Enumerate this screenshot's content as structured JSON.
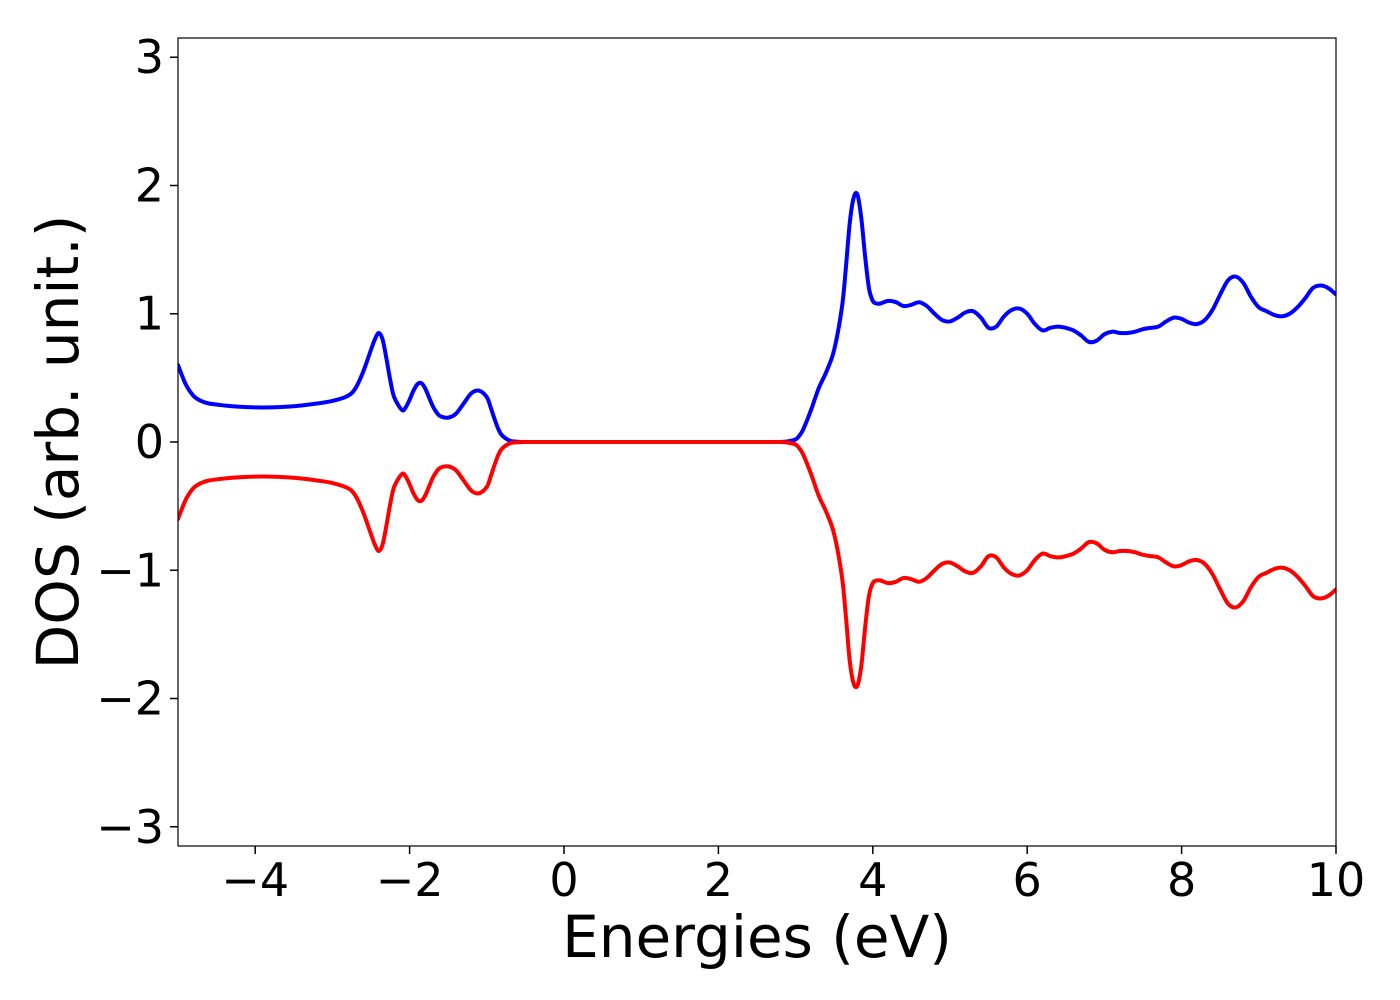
{
  "chart_data": {
    "type": "line",
    "xlabel": "Energies (eV)",
    "ylabel": "DOS (arb. unit.)",
    "xlim": [
      -5,
      10
    ],
    "ylim": [
      -3.15,
      3.15
    ],
    "x_ticks": [
      -4,
      -2,
      0,
      2,
      4,
      6,
      8,
      10
    ],
    "x_tick_labels": [
      "−4",
      "−2",
      "0",
      "2",
      "4",
      "6",
      "8",
      "10"
    ],
    "y_ticks": [
      -3,
      -2,
      -1,
      0,
      1,
      2,
      3
    ],
    "y_tick_labels": [
      "−3",
      "−2",
      "−1",
      "0",
      "1",
      "2",
      "3"
    ],
    "grid": false,
    "legend": "none",
    "series": [
      {
        "color": "#0000ff",
        "x": [
          -5.0,
          -4.9,
          -4.8,
          -4.7,
          -4.6,
          -4.4,
          -4.2,
          -4.0,
          -3.8,
          -3.6,
          -3.4,
          -3.2,
          -3.0,
          -2.8,
          -2.7,
          -2.6,
          -2.5,
          -2.45,
          -2.4,
          -2.35,
          -2.3,
          -2.25,
          -2.2,
          -2.1,
          -2.05,
          -2.0,
          -1.95,
          -1.9,
          -1.85,
          -1.8,
          -1.75,
          -1.7,
          -1.65,
          -1.6,
          -1.5,
          -1.4,
          -1.3,
          -1.2,
          -1.1,
          -1.0,
          -0.95,
          -0.9,
          -0.85,
          -0.8,
          -0.7,
          -0.6,
          -0.5,
          -0.4,
          -0.2,
          0.0,
          0.5,
          1.0,
          1.5,
          2.0,
          2.5,
          2.8,
          2.9,
          3.0,
          3.05,
          3.1,
          3.2,
          3.3,
          3.4,
          3.5,
          3.6,
          3.65,
          3.7,
          3.75,
          3.8,
          3.85,
          3.9,
          3.95,
          4.0,
          4.05,
          4.1,
          4.2,
          4.3,
          4.4,
          4.5,
          4.6,
          4.7,
          4.8,
          4.9,
          5.0,
          5.1,
          5.2,
          5.3,
          5.4,
          5.5,
          5.6,
          5.7,
          5.8,
          5.9,
          6.0,
          6.1,
          6.2,
          6.3,
          6.4,
          6.5,
          6.6,
          6.7,
          6.8,
          6.9,
          7.0,
          7.1,
          7.2,
          7.3,
          7.4,
          7.5,
          7.6,
          7.7,
          7.8,
          7.9,
          8.0,
          8.1,
          8.2,
          8.3,
          8.4,
          8.5,
          8.6,
          8.7,
          8.8,
          8.9,
          9.0,
          9.1,
          9.2,
          9.3,
          9.4,
          9.5,
          9.6,
          9.7,
          9.8,
          9.9,
          10.0
        ],
        "y": [
          0.6,
          0.45,
          0.36,
          0.32,
          0.3,
          0.285,
          0.275,
          0.27,
          0.27,
          0.275,
          0.285,
          0.3,
          0.32,
          0.36,
          0.42,
          0.55,
          0.72,
          0.8,
          0.85,
          0.8,
          0.65,
          0.48,
          0.35,
          0.25,
          0.27,
          0.33,
          0.4,
          0.45,
          0.46,
          0.42,
          0.35,
          0.28,
          0.23,
          0.2,
          0.19,
          0.22,
          0.3,
          0.38,
          0.4,
          0.35,
          0.27,
          0.18,
          0.1,
          0.05,
          0.01,
          0.002,
          0.0,
          0.0,
          0.0,
          0.0,
          0.0,
          0.0,
          0.0,
          0.0,
          0.0,
          0.0,
          0.005,
          0.02,
          0.05,
          0.1,
          0.25,
          0.42,
          0.55,
          0.72,
          1.05,
          1.35,
          1.7,
          1.9,
          1.93,
          1.75,
          1.45,
          1.2,
          1.1,
          1.08,
          1.08,
          1.1,
          1.09,
          1.06,
          1.07,
          1.09,
          1.06,
          1.0,
          0.95,
          0.94,
          0.97,
          1.01,
          1.02,
          0.97,
          0.89,
          0.9,
          0.98,
          1.03,
          1.04,
          1.0,
          0.92,
          0.87,
          0.89,
          0.9,
          0.89,
          0.87,
          0.83,
          0.78,
          0.79,
          0.84,
          0.86,
          0.85,
          0.85,
          0.86,
          0.88,
          0.89,
          0.9,
          0.94,
          0.97,
          0.96,
          0.93,
          0.92,
          0.95,
          1.03,
          1.15,
          1.26,
          1.29,
          1.24,
          1.13,
          1.05,
          1.02,
          0.99,
          0.98,
          1.0,
          1.05,
          1.12,
          1.2,
          1.22,
          1.2,
          1.15
        ]
      },
      {
        "color": "#ff0000",
        "x": [
          -5.0,
          -4.9,
          -4.8,
          -4.7,
          -4.6,
          -4.4,
          -4.2,
          -4.0,
          -3.8,
          -3.6,
          -3.4,
          -3.2,
          -3.0,
          -2.8,
          -2.7,
          -2.6,
          -2.5,
          -2.45,
          -2.4,
          -2.35,
          -2.3,
          -2.25,
          -2.2,
          -2.1,
          -2.05,
          -2.0,
          -1.95,
          -1.9,
          -1.85,
          -1.8,
          -1.75,
          -1.7,
          -1.65,
          -1.6,
          -1.5,
          -1.4,
          -1.3,
          -1.2,
          -1.1,
          -1.0,
          -0.95,
          -0.9,
          -0.85,
          -0.8,
          -0.7,
          -0.6,
          -0.5,
          -0.4,
          -0.2,
          0.0,
          0.5,
          1.0,
          1.5,
          2.0,
          2.5,
          2.8,
          2.9,
          3.0,
          3.05,
          3.1,
          3.2,
          3.3,
          3.4,
          3.5,
          3.6,
          3.65,
          3.7,
          3.75,
          3.8,
          3.85,
          3.9,
          3.95,
          4.0,
          4.05,
          4.1,
          4.2,
          4.3,
          4.4,
          4.5,
          4.6,
          4.7,
          4.8,
          4.9,
          5.0,
          5.1,
          5.2,
          5.3,
          5.4,
          5.5,
          5.6,
          5.7,
          5.8,
          5.9,
          6.0,
          6.1,
          6.2,
          6.3,
          6.4,
          6.5,
          6.6,
          6.7,
          6.8,
          6.9,
          7.0,
          7.1,
          7.2,
          7.3,
          7.4,
          7.5,
          7.6,
          7.7,
          7.8,
          7.9,
          8.0,
          8.1,
          8.2,
          8.3,
          8.4,
          8.5,
          8.6,
          8.7,
          8.8,
          8.9,
          9.0,
          9.1,
          9.2,
          9.3,
          9.4,
          9.5,
          9.6,
          9.7,
          9.8,
          9.9,
          10.0
        ],
        "y": [
          -0.6,
          -0.45,
          -0.36,
          -0.32,
          -0.3,
          -0.285,
          -0.275,
          -0.27,
          -0.27,
          -0.275,
          -0.285,
          -0.3,
          -0.32,
          -0.36,
          -0.42,
          -0.55,
          -0.72,
          -0.8,
          -0.85,
          -0.8,
          -0.65,
          -0.48,
          -0.35,
          -0.25,
          -0.27,
          -0.33,
          -0.4,
          -0.45,
          -0.46,
          -0.42,
          -0.35,
          -0.28,
          -0.23,
          -0.2,
          -0.19,
          -0.22,
          -0.3,
          -0.38,
          -0.4,
          -0.35,
          -0.27,
          -0.18,
          -0.1,
          -0.05,
          -0.01,
          -0.002,
          0.0,
          0.0,
          0.0,
          0.0,
          0.0,
          0.0,
          0.0,
          0.0,
          0.0,
          0.0,
          -0.005,
          -0.02,
          -0.05,
          -0.1,
          -0.25,
          -0.42,
          -0.55,
          -0.72,
          -1.05,
          -1.35,
          -1.7,
          -1.88,
          -1.9,
          -1.75,
          -1.45,
          -1.2,
          -1.1,
          -1.08,
          -1.08,
          -1.1,
          -1.09,
          -1.06,
          -1.07,
          -1.09,
          -1.06,
          -1.0,
          -0.95,
          -0.94,
          -0.97,
          -1.01,
          -1.02,
          -0.97,
          -0.89,
          -0.9,
          -0.98,
          -1.03,
          -1.04,
          -1.0,
          -0.92,
          -0.87,
          -0.89,
          -0.9,
          -0.89,
          -0.87,
          -0.83,
          -0.78,
          -0.79,
          -0.84,
          -0.86,
          -0.85,
          -0.85,
          -0.86,
          -0.88,
          -0.89,
          -0.9,
          -0.94,
          -0.97,
          -0.96,
          -0.93,
          -0.92,
          -0.95,
          -1.03,
          -1.15,
          -1.26,
          -1.29,
          -1.24,
          -1.13,
          -1.05,
          -1.02,
          -0.99,
          -0.98,
          -1.0,
          -1.05,
          -1.12,
          -1.2,
          -1.22,
          -1.2,
          -1.15
        ]
      }
    ]
  }
}
